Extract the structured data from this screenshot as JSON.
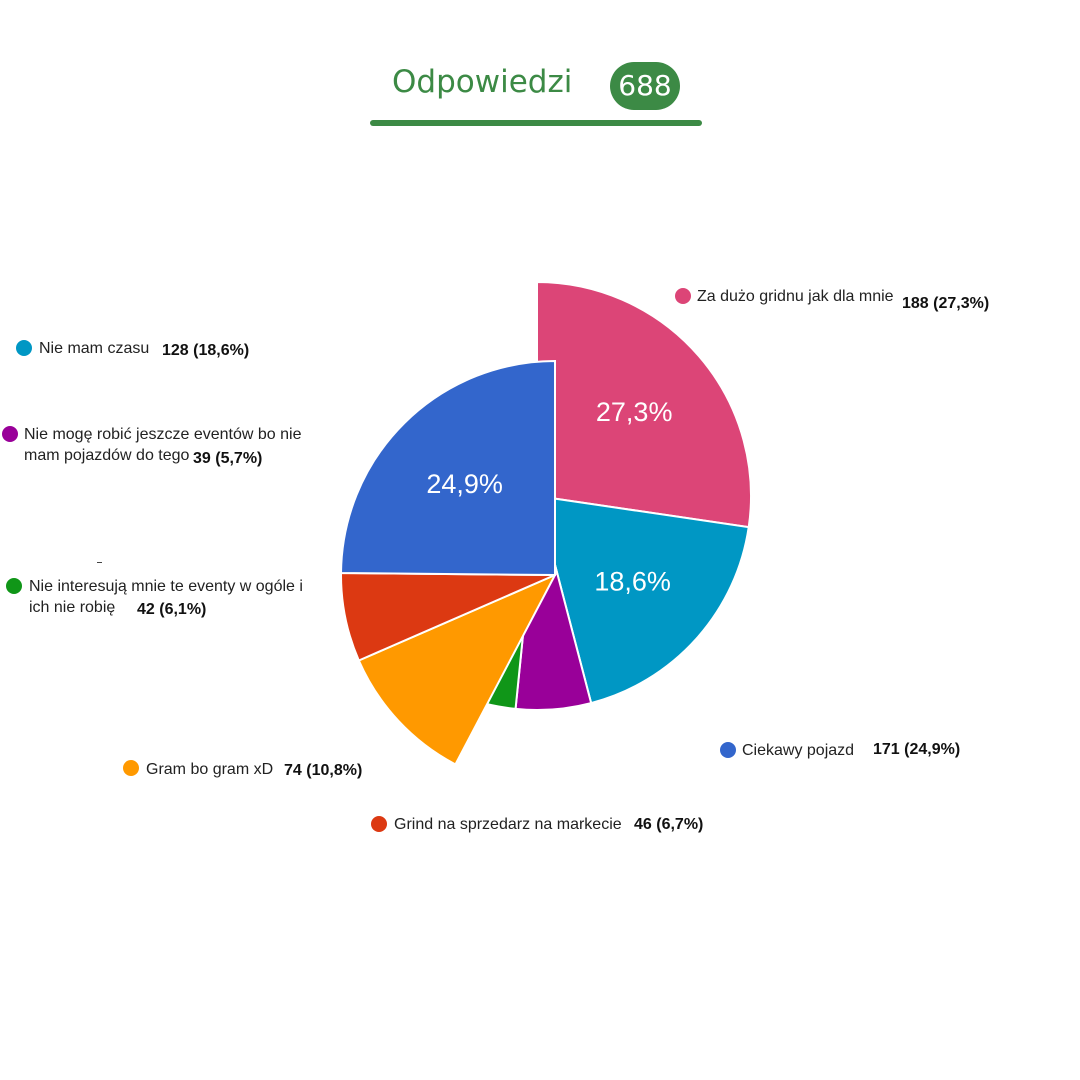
{
  "header": {
    "title": "Odpowiedzi",
    "count": "688",
    "color": "#3c8a45"
  },
  "chart_data": {
    "type": "pie",
    "title": "",
    "total": 688,
    "slices": [
      {
        "name": "Za dużo gridnu jak dla mnie",
        "value": 188,
        "percent": "27,3%",
        "color": "#dc4577",
        "label": "27,3%",
        "legend_value": "188 (27,3%)"
      },
      {
        "name": "Nie mam czasu",
        "value": 128,
        "percent": "18,6%",
        "color": "#0097c4",
        "label": "18,6%",
        "legend_value": "128 (18,6%)"
      },
      {
        "name": "Nie mogę robić jeszcze eventów bo nie mam pojazdów do tego",
        "value": 39,
        "percent": "5,7%",
        "color": "#990099",
        "label": "",
        "legend_value": "39 (5,7%)"
      },
      {
        "name": "Nie interesują mnie te eventy w ogóle i ich nie robię",
        "value": 42,
        "percent": "6,1%",
        "color": "#109618",
        "label": "",
        "legend_value": "42 (6,1%)"
      },
      {
        "name": "Gram bo gram xD",
        "value": 74,
        "percent": "10,8%",
        "color": "#ff9900",
        "label": "",
        "legend_value": "74 (10,8%)"
      },
      {
        "name": "Grind na sprzedarz na markecie",
        "value": 46,
        "percent": "6,7%",
        "color": "#dc3912",
        "label": "",
        "legend_value": "46 (6,7%)"
      },
      {
        "name": "Ciekawy pojazd",
        "value": 171,
        "percent": "24,9%",
        "color": "#3366cc",
        "label": "24,9%",
        "legend_value": "171 (24,9%)"
      }
    ],
    "legend": {
      "za_duzo": {
        "label": "Za dużo gridnu jak dla mnie",
        "value": "188 (27,3%)"
      },
      "nie_mam_czasu": {
        "label": "Nie mam czasu",
        "value": "128 (18,6%)"
      },
      "nie_moge": {
        "label_line1": "Nie mogę robić jeszcze eventów bo nie",
        "label_line2": "mam pojazdów do tego",
        "value": "39 (5,7%)"
      },
      "nie_interesuja": {
        "label_line1": "Nie interesują mnie te eventy w ogóle i",
        "label_line2": "ich nie robię",
        "value": "42 (6,1%)"
      },
      "gram": {
        "label": "Gram bo gram xD",
        "value": "74 (10,8%)"
      },
      "grind": {
        "label": "Grind na sprzedarz na markecie",
        "value": "46 (6,7%)"
      },
      "ciekawy": {
        "label": "Ciekawy pojazd",
        "value": "171 (24,9%)"
      }
    }
  }
}
